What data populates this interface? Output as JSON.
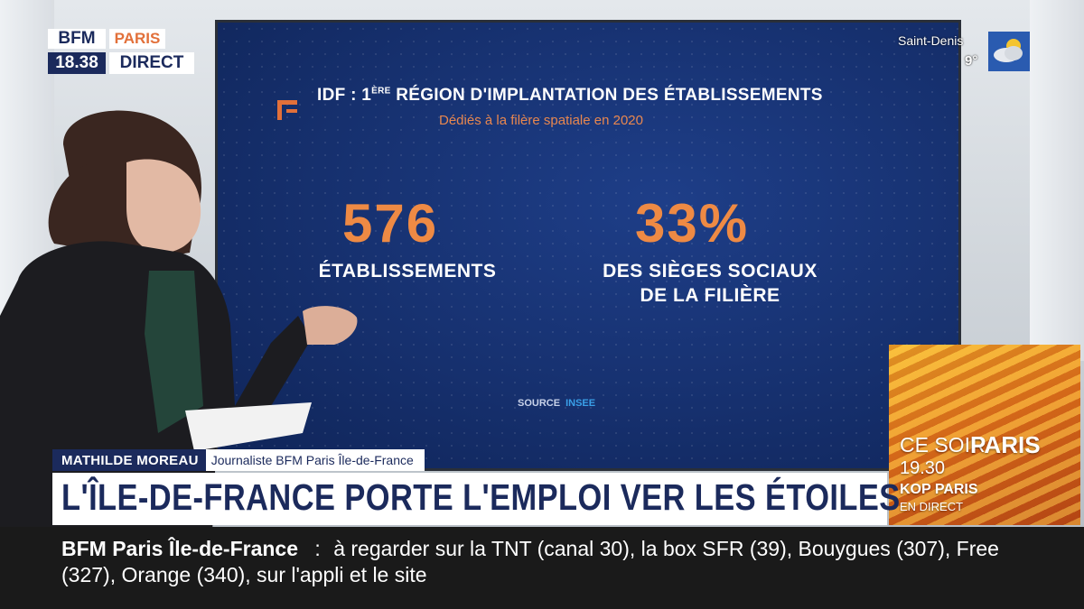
{
  "channel": {
    "logo_bfm": "BFM",
    "logo_city": "PARIS",
    "time": "18.38",
    "live_label": "DIRECT"
  },
  "weather": {
    "city": "Saint-Denis",
    "temperature": "9°",
    "icon": "cloud-sun-icon"
  },
  "screen": {
    "title_prefix": "IDF : 1",
    "title_sup": "ÈRE",
    "title_rest": " RÉGION D'IMPLANTATION DES ÉTABLISSEMENTS",
    "subtitle": "Dédiés à la filère spatiale en 2020",
    "stats": [
      {
        "value": "576",
        "label_line1": "ÉTABLISSEMENTS",
        "label_line2": ""
      },
      {
        "value": "33%",
        "label_line1": "DES SIÈGES SOCIAUX",
        "label_line2": "DE LA FILIÈRE"
      }
    ],
    "source_label": "SOURCE",
    "source_value": "INSEE"
  },
  "promo": {
    "label1": "CE SOIR",
    "label2": "PARIS",
    "time": "19.30",
    "show": "KOP PARIS",
    "subtitle": "EN DIRECT"
  },
  "lower_third": {
    "name": "MATHILDE MOREAU",
    "role": "Journaliste BFM Paris Île-de-France",
    "headline": "L'ÎLE-DE-FRANCE PORTE L'EMPLOI VER LES ÉTOILES"
  },
  "ticker": {
    "channel": "BFM Paris Île-de-France",
    "separator": ":",
    "message": "à regarder sur la TNT (canal 30), la box SFR (39), Bouygues (307), Free (327), Orange (340), sur l'appli et le site"
  },
  "colors": {
    "navy": "#1b2a5c",
    "orange": "#ee8a44",
    "screen_blue": "#16306e"
  }
}
